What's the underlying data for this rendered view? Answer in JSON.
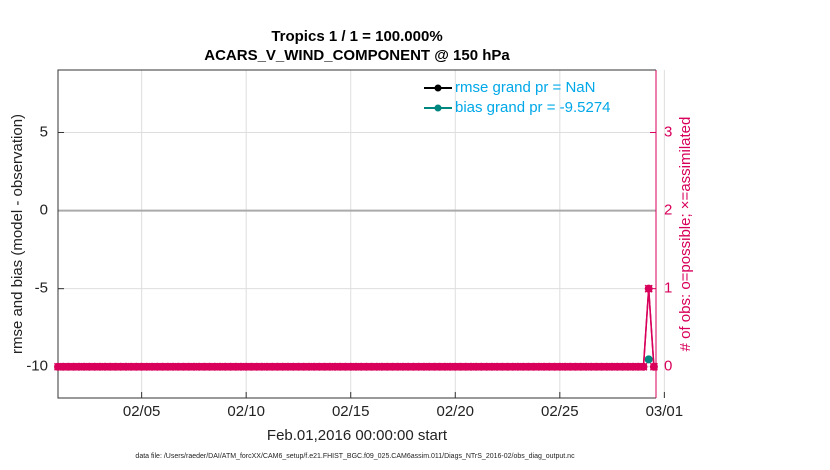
{
  "chart_data": {
    "type": "line",
    "title": "Tropics 1 / 1 = 100.000%",
    "subtitle": "ACARS_V_WIND_COMPONENT @ 150 hPa",
    "y_label": "rmse and bias (model - observation)",
    "y2_label": "# of obs: o=possible; ×=assimilated",
    "x_label": "Feb.01,2016 00:00:00 start",
    "footnote": "data file: /Users/raeder/DAI/ATM_forcXX/CAM6_setup/f.e21.FHIST_BGC.f09_025.CAM6assim.011/Diags_NTrS_2016-02/obs_diag_output.nc",
    "x": [
      0,
      0.25,
      0.5,
      0.75,
      1,
      1.25,
      1.5,
      1.75,
      2,
      2.25,
      2.5,
      2.75,
      3,
      3.25,
      3.5,
      3.75,
      4,
      4.25,
      4.5,
      4.75,
      5,
      5.25,
      5.5,
      5.75,
      6,
      6.25,
      6.5,
      6.75,
      7,
      7.25,
      7.5,
      7.75,
      8,
      8.25,
      8.5,
      8.75,
      9,
      9.25,
      9.5,
      9.75,
      10,
      10.25,
      10.5,
      10.75,
      11,
      11.25,
      11.5,
      11.75,
      12,
      12.25,
      12.5,
      12.75,
      13,
      13.25,
      13.5,
      13.75,
      14,
      14.25,
      14.5,
      14.75,
      15,
      15.25,
      15.5,
      15.75,
      16,
      16.25,
      16.5,
      16.75,
      17,
      17.25,
      17.5,
      17.75,
      18,
      18.25,
      18.5,
      18.75,
      19,
      19.25,
      19.5,
      19.75,
      20,
      20.25,
      20.5,
      20.75,
      21,
      21.25,
      21.5,
      21.75,
      22,
      22.25,
      22.5,
      22.75,
      23,
      23.25,
      23.5,
      23.75,
      24,
      24.25,
      24.5,
      24.75,
      25,
      25.25,
      25.5,
      25.75,
      26,
      26.25,
      26.5,
      26.75,
      27,
      27.25,
      27.5,
      27.75,
      28,
      28.25,
      28.5
    ],
    "series": [
      {
        "name": "rmse grand pr = NaN",
        "color": "#000000",
        "marker": "o",
        "values": [
          null,
          null,
          null,
          null,
          null,
          null,
          null,
          null,
          null,
          null,
          null,
          null,
          null,
          null,
          null,
          null,
          null,
          null,
          null,
          null,
          null,
          null,
          null,
          null,
          null,
          null,
          null,
          null,
          null,
          null,
          null,
          null,
          null,
          null,
          null,
          null,
          null,
          null,
          null,
          null,
          null,
          null,
          null,
          null,
          null,
          null,
          null,
          null,
          null,
          null,
          null,
          null,
          null,
          null,
          null,
          null,
          null,
          null,
          null,
          null,
          null,
          null,
          null,
          null,
          null,
          null,
          null,
          null,
          null,
          null,
          null,
          null,
          null,
          null,
          null,
          null,
          null,
          null,
          null,
          null,
          null,
          null,
          null,
          null,
          null,
          null,
          null,
          null,
          null,
          null,
          null,
          null,
          null,
          null,
          null,
          null,
          null,
          null,
          null,
          null,
          null,
          null,
          null,
          null,
          null,
          null,
          null,
          null,
          null,
          null,
          null,
          null,
          null,
          null,
          null
        ]
      },
      {
        "name": "bias grand pr = -9.5274",
        "color": "#00877f",
        "marker": "o",
        "values": [
          null,
          null,
          null,
          null,
          null,
          null,
          null,
          null,
          null,
          null,
          null,
          null,
          null,
          null,
          null,
          null,
          null,
          null,
          null,
          null,
          null,
          null,
          null,
          null,
          null,
          null,
          null,
          null,
          null,
          null,
          null,
          null,
          null,
          null,
          null,
          null,
          null,
          null,
          null,
          null,
          null,
          null,
          null,
          null,
          null,
          null,
          null,
          null,
          null,
          null,
          null,
          null,
          null,
          null,
          null,
          null,
          null,
          null,
          null,
          null,
          null,
          null,
          null,
          null,
          null,
          null,
          null,
          null,
          null,
          null,
          null,
          null,
          null,
          null,
          null,
          null,
          null,
          null,
          null,
          null,
          null,
          null,
          null,
          null,
          null,
          null,
          null,
          null,
          null,
          null,
          null,
          null,
          null,
          null,
          null,
          null,
          null,
          null,
          null,
          null,
          null,
          null,
          null,
          null,
          null,
          null,
          null,
          null,
          null,
          null,
          null,
          null,
          null,
          -9.5274,
          null
        ]
      },
      {
        "color": "#d8005a",
        "marker": "o",
        "axis": "y2",
        "values": [
          0,
          0,
          0,
          0,
          0,
          0,
          0,
          0,
          0,
          0,
          0,
          0,
          0,
          0,
          0,
          0,
          0,
          0,
          0,
          0,
          0,
          0,
          0,
          0,
          0,
          0,
          0,
          0,
          0,
          0,
          0,
          0,
          0,
          0,
          0,
          0,
          0,
          0,
          0,
          0,
          0,
          0,
          0,
          0,
          0,
          0,
          0,
          0,
          0,
          0,
          0,
          0,
          0,
          0,
          0,
          0,
          0,
          0,
          0,
          0,
          0,
          0,
          0,
          0,
          0,
          0,
          0,
          0,
          0,
          0,
          0,
          0,
          0,
          0,
          0,
          0,
          0,
          0,
          0,
          0,
          0,
          0,
          0,
          0,
          0,
          0,
          0,
          0,
          0,
          0,
          0,
          0,
          0,
          0,
          0,
          0,
          0,
          0,
          0,
          0,
          0,
          0,
          0,
          0,
          0,
          0,
          0,
          0,
          0,
          0,
          0,
          0,
          0,
          1,
          0
        ]
      },
      {
        "color": "#d8005a",
        "marker": "x",
        "axis": "y2",
        "values": [
          0,
          0,
          0,
          0,
          0,
          0,
          0,
          0,
          0,
          0,
          0,
          0,
          0,
          0,
          0,
          0,
          0,
          0,
          0,
          0,
          0,
          0,
          0,
          0,
          0,
          0,
          0,
          0,
          0,
          0,
          0,
          0,
          0,
          0,
          0,
          0,
          0,
          0,
          0,
          0,
          0,
          0,
          0,
          0,
          0,
          0,
          0,
          0,
          0,
          0,
          0,
          0,
          0,
          0,
          0,
          0,
          0,
          0,
          0,
          0,
          0,
          0,
          0,
          0,
          0,
          0,
          0,
          0,
          0,
          0,
          0,
          0,
          0,
          0,
          0,
          0,
          0,
          0,
          0,
          0,
          0,
          0,
          0,
          0,
          0,
          0,
          0,
          0,
          0,
          0,
          0,
          0,
          0,
          0,
          0,
          0,
          0,
          0,
          0,
          0,
          0,
          0,
          0,
          0,
          0,
          0,
          0,
          0,
          0,
          0,
          0,
          0,
          0,
          1,
          0
        ]
      }
    ],
    "xlim": [
      0,
      28.6
    ],
    "xticks": [
      {
        "value": 4,
        "label": "02/05"
      },
      {
        "value": 9,
        "label": "02/10"
      },
      {
        "value": 14,
        "label": "02/15"
      },
      {
        "value": 19,
        "label": "02/20"
      },
      {
        "value": 24,
        "label": "02/25"
      },
      {
        "value": 29,
        "label": "03/01"
      }
    ],
    "ylim": [
      -12,
      9
    ],
    "yticks": [
      -10,
      -5,
      0,
      5
    ],
    "y2lim": [
      -0.4,
      3.8
    ],
    "y2ticks": [
      0,
      1,
      2,
      3
    ],
    "y2_color": "#d8005a",
    "legend_text_color": "#00a8e8",
    "legend": "upper right",
    "grid": true,
    "zero_line": true
  }
}
